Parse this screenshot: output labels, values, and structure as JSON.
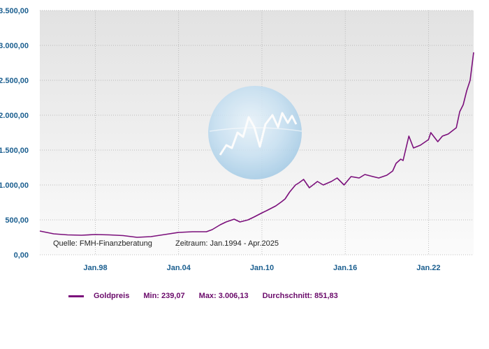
{
  "colors": {
    "series": "#7b0f7b",
    "legend_text": "#6a0a6a",
    "tick_text": "#1a5e8f",
    "plot_top": "#e2e2e2",
    "plot_bottom": "#fbfbfb"
  },
  "chart_data": {
    "type": "line",
    "ylim": [
      0,
      3500
    ],
    "yticks": [
      "0,00",
      "500,00",
      "1.000,00",
      "1.500,00",
      "2.000,00",
      "2.500,00",
      "3.000,00",
      "3.500,00"
    ],
    "ytick_values": [
      0,
      500,
      1000,
      1500,
      2000,
      2500,
      3000,
      3500
    ],
    "xlim": [
      "1994-01",
      "2025-04"
    ],
    "xticks": [
      "Jan.98",
      "Jan.04",
      "Jan.10",
      "Jan.16",
      "Jan.22"
    ],
    "xtick_dates": [
      "1998-01",
      "2004-01",
      "2010-01",
      "2016-01",
      "2022-01"
    ],
    "grid": true,
    "series": [
      {
        "name": "Goldpreis",
        "x": [
          "1994-01",
          "1995-01",
          "1996-01",
          "1997-01",
          "1998-01",
          "1999-01",
          "2000-01",
          "2001-01",
          "2002-01",
          "2003-01",
          "2004-01",
          "2005-01",
          "2005-06",
          "2006-01",
          "2006-06",
          "2007-01",
          "2007-06",
          "2008-01",
          "2008-06",
          "2009-01",
          "2009-06",
          "2010-01",
          "2010-06",
          "2011-01",
          "2011-06",
          "2011-09",
          "2012-01",
          "2012-06",
          "2012-09",
          "2013-01",
          "2013-06",
          "2014-01",
          "2014-06",
          "2015-01",
          "2015-06",
          "2015-12",
          "2016-06",
          "2017-01",
          "2017-06",
          "2018-01",
          "2018-06",
          "2019-01",
          "2019-06",
          "2019-09",
          "2020-01",
          "2020-03",
          "2020-08",
          "2020-12",
          "2021-06",
          "2022-01",
          "2022-03",
          "2022-09",
          "2023-01",
          "2023-06",
          "2024-01",
          "2024-04",
          "2024-07",
          "2024-10",
          "2025-01",
          "2025-04"
        ],
        "values": [
          340,
          300,
          285,
          280,
          290,
          285,
          275,
          250,
          260,
          290,
          320,
          330,
          330,
          330,
          360,
          430,
          470,
          510,
          470,
          500,
          540,
          600,
          640,
          700,
          760,
          800,
          900,
          1000,
          1030,
          1080,
          960,
          1050,
          1000,
          1050,
          1100,
          1000,
          1120,
          1100,
          1150,
          1120,
          1100,
          1140,
          1200,
          1310,
          1370,
          1350,
          1700,
          1530,
          1570,
          1650,
          1750,
          1620,
          1700,
          1730,
          1820,
          2050,
          2150,
          2350,
          2500,
          2900
        ]
      }
    ],
    "annotations": [
      "Quelle: FMH-Finanzberatung",
      "Zeitraum: Jan.1994 - Apr.2025"
    ],
    "legend": {
      "placement": "bottom",
      "series_label": "Goldpreis",
      "min_text": "Min: 239,07",
      "max_text": "Max: 3.006,13",
      "avg_text": "Durchschnitt: 851,83"
    }
  }
}
